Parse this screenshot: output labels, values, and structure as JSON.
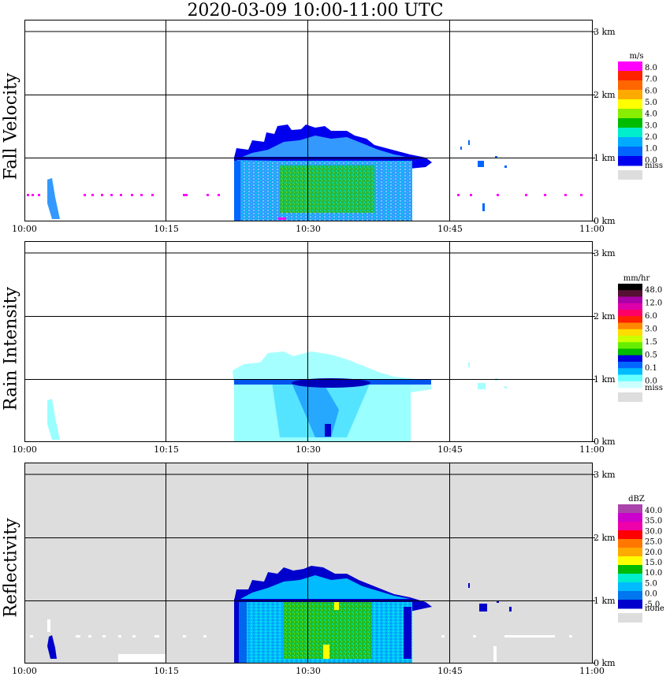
{
  "title": "2020-03-09   10:00-11:00 UTC",
  "time_ticks": [
    "10:00",
    "10:15",
    "10:30",
    "10:45",
    "11:00"
  ],
  "height_ticks": [
    "0 km",
    "1 km",
    "2 km",
    "3 km"
  ],
  "chart_data": [
    {
      "type": "heatmap",
      "title": "Fall Velocity",
      "xlabel": "",
      "ylabel": "",
      "x": [
        "10:00",
        "10:15",
        "10:30",
        "10:45",
        "11:00"
      ],
      "y": [
        "0 km",
        "1 km",
        "2 km",
        "3 km"
      ],
      "ylim": [
        0,
        3.1
      ],
      "grid": true,
      "legend": {
        "unit": "m/s",
        "labels": [
          "8.0",
          "7.0",
          "6.0",
          "5.0",
          "4.0",
          "3.0",
          "2.0",
          "1.0",
          "0.0"
        ],
        "colors": [
          "#ff00ff",
          "#ff2200",
          "#ff6600",
          "#ffaa00",
          "#ffff00",
          "#88ee00",
          "#00bb00",
          "#00eecc",
          "#00aaff",
          "#0066ff",
          "#0000ee"
        ],
        "miss_label": "miss",
        "miss_color": "#dddddd"
      }
    },
    {
      "type": "heatmap",
      "title": "Rain Intensity",
      "xlabel": "",
      "ylabel": "",
      "x": [
        "10:00",
        "10:15",
        "10:30",
        "10:45",
        "11:00"
      ],
      "y": [
        "0 km",
        "1 km",
        "2 km",
        "3 km"
      ],
      "ylim": [
        0,
        3.1
      ],
      "grid": true,
      "legend": {
        "unit": "mm/hr",
        "labels": [
          "48.0",
          "12.0",
          "6.0",
          "3.0",
          "1.5",
          "0.5",
          "0.1",
          "0.0"
        ],
        "colors": [
          "#000000",
          "#551133",
          "#aa00aa",
          "#dd00aa",
          "#ff0066",
          "#ff2200",
          "#ff8800",
          "#ffdd00",
          "#ccff00",
          "#66ee00",
          "#00bb00",
          "#0000dd",
          "#0066ff",
          "#00bbff",
          "#66ffff",
          "#ccffff"
        ],
        "miss_label": "miss",
        "miss_color": "#dddddd"
      }
    },
    {
      "type": "heatmap",
      "title": "Reflectivity",
      "xlabel": "",
      "ylabel": "",
      "x": [
        "10:00",
        "10:15",
        "10:30",
        "10:45",
        "11:00"
      ],
      "y": [
        "0 km",
        "1 km",
        "2 km",
        "3 km"
      ],
      "ylim": [
        0,
        3.1
      ],
      "grid": true,
      "legend": {
        "unit": "dBZ",
        "labels": [
          "40.0",
          "35.0",
          "30.0",
          "25.0",
          "20.0",
          "15.0",
          "10.0",
          "5.0",
          "0.0",
          "-5.0"
        ],
        "colors": [
          "#aa44aa",
          "#cc00cc",
          "#ee00aa",
          "#ff0000",
          "#ff7700",
          "#ffaa00",
          "#ffff00",
          "#00bb00",
          "#00eecc",
          "#00bbff",
          "#0077ee",
          "#0000cc"
        ],
        "miss_label": "none",
        "miss_color": "#dddddd"
      }
    }
  ]
}
